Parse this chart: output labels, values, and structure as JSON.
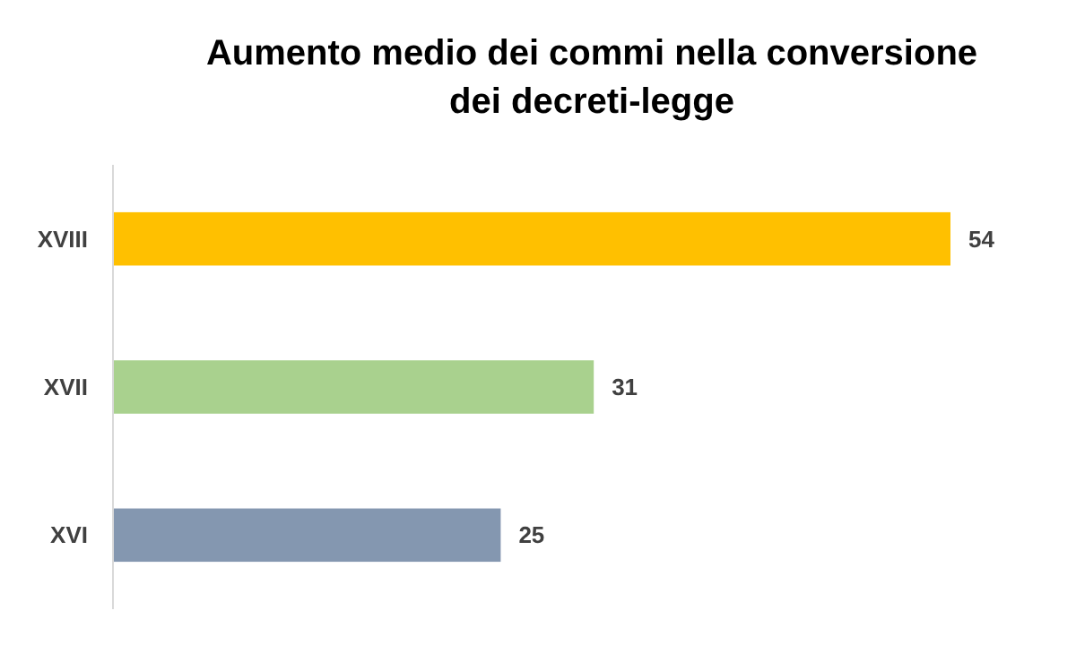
{
  "chart_data": {
    "type": "bar",
    "orientation": "horizontal",
    "title": "Aumento medio dei commi nella conversione dei decreti-legge",
    "categories": [
      "XVIII",
      "XVII",
      "XVI"
    ],
    "values": [
      54,
      31,
      25
    ],
    "colors": [
      "#ffc000",
      "#a9d18e",
      "#8497b0"
    ],
    "data_labels": true
  }
}
